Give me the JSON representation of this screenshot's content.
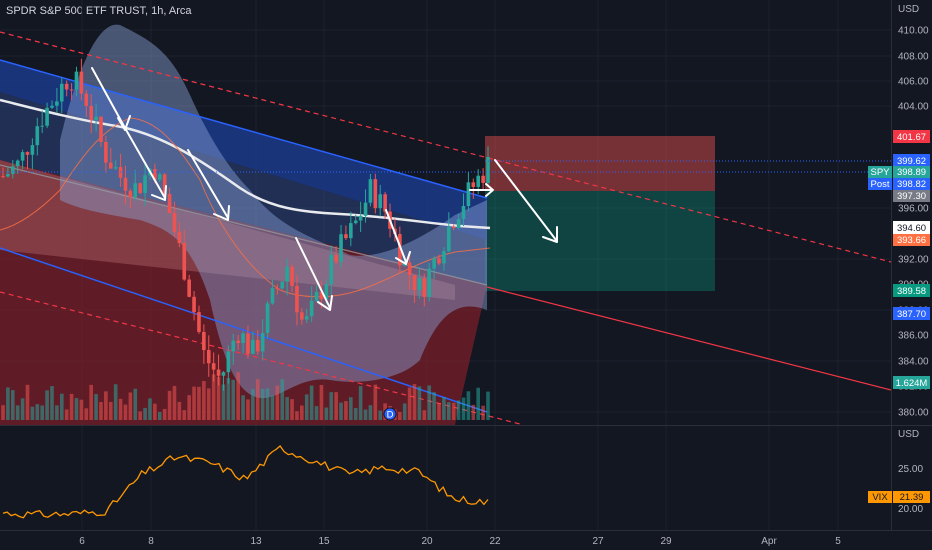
{
  "header": {
    "symbol": "SPDR S&P 500 ETF TRUST",
    "interval": "1h",
    "exchange": "Arca"
  },
  "price_axis": {
    "currency": "USD",
    "ticks": [
      "410.00",
      "408.00",
      "406.00",
      "404.00",
      "396.00",
      "392.00",
      "390.00",
      "388.00",
      "386.00",
      "384.00",
      "382.00",
      "380.00"
    ],
    "badges": {
      "target_top": "401.67",
      "entry": "399.62",
      "spy_label": "SPY",
      "spy_price": "398.89",
      "post_label": "Post",
      "post_price": "398.82",
      "mid": "397.30",
      "ma_white": "394.60",
      "ma_orange": "393.66",
      "stop": "389.58",
      "lower_band": "387.70",
      "volume": "1.624M"
    }
  },
  "vix_axis": {
    "currency": "USD",
    "ticks": [
      "25.00",
      "20.00"
    ],
    "label": "VIX",
    "value": "21.39"
  },
  "time_axis": {
    "labels": [
      "6",
      "8",
      "13",
      "15",
      "20",
      "22",
      "27",
      "29",
      "Apr",
      "5"
    ]
  },
  "event_marker": "D",
  "colors": {
    "up": "#26a69a",
    "down": "#ef5350",
    "channel": "#2962ff",
    "vix": "#ff9800",
    "background": "#131722"
  },
  "chart_data": {
    "type": "candlestick",
    "title": "",
    "ylim": [
      379,
      412
    ],
    "x_labels": [
      "6",
      "8",
      "13",
      "15",
      "20",
      "22",
      "27",
      "29",
      "Apr",
      "5"
    ],
    "series": [
      {
        "name": "SPY",
        "approx_close_path": [
          398,
          399,
          402,
          404,
          406,
          404,
          400,
          398,
          397,
          399,
          395,
          390,
          384,
          382,
          386,
          384,
          388,
          391,
          386,
          389,
          392,
          394,
          397,
          395,
          391,
          389,
          392,
          395,
          397,
          398.89
        ]
      },
      {
        "name": "VIX",
        "approx_path": [
          20.2,
          20.0,
          20.1,
          20.4,
          24.5,
          26.5,
          25.8,
          24.0,
          27.5,
          26.0,
          24.5,
          25.3,
          24.8,
          21.8,
          21.39
        ]
      }
    ]
  }
}
